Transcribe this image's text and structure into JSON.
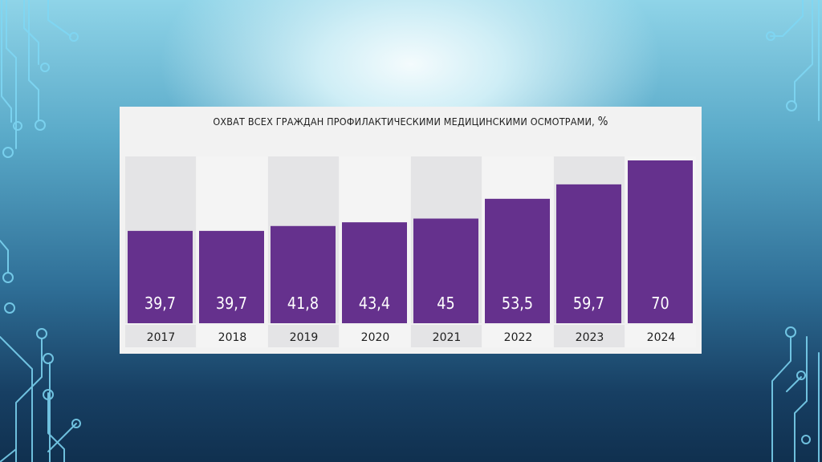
{
  "slide": {
    "colors": {
      "bar": "#65318d",
      "column_light": "#f4f4f4",
      "column_dark": "#e4e4e6",
      "panel": "#f2f2f2"
    }
  },
  "chart_data": {
    "type": "bar",
    "title": "ОХВАТ ВСЕХ ГРАЖДАН ПРОФИЛАКТИЧЕСКИМИ МЕДИЦИНСКИМИ ОСМОТРАМИ,",
    "title_unit": "%",
    "categories": [
      "2017",
      "2018",
      "2019",
      "2020",
      "2021",
      "2022",
      "2023",
      "2024"
    ],
    "values": [
      39.7,
      39.7,
      41.8,
      43.4,
      45,
      53.5,
      59.7,
      70
    ],
    "value_labels": [
      "39,7",
      "39,7",
      "41,8",
      "43,4",
      "45",
      "53,5",
      "59,7",
      "70"
    ],
    "ylim": [
      0,
      70
    ],
    "grid": false,
    "legend": "none"
  }
}
